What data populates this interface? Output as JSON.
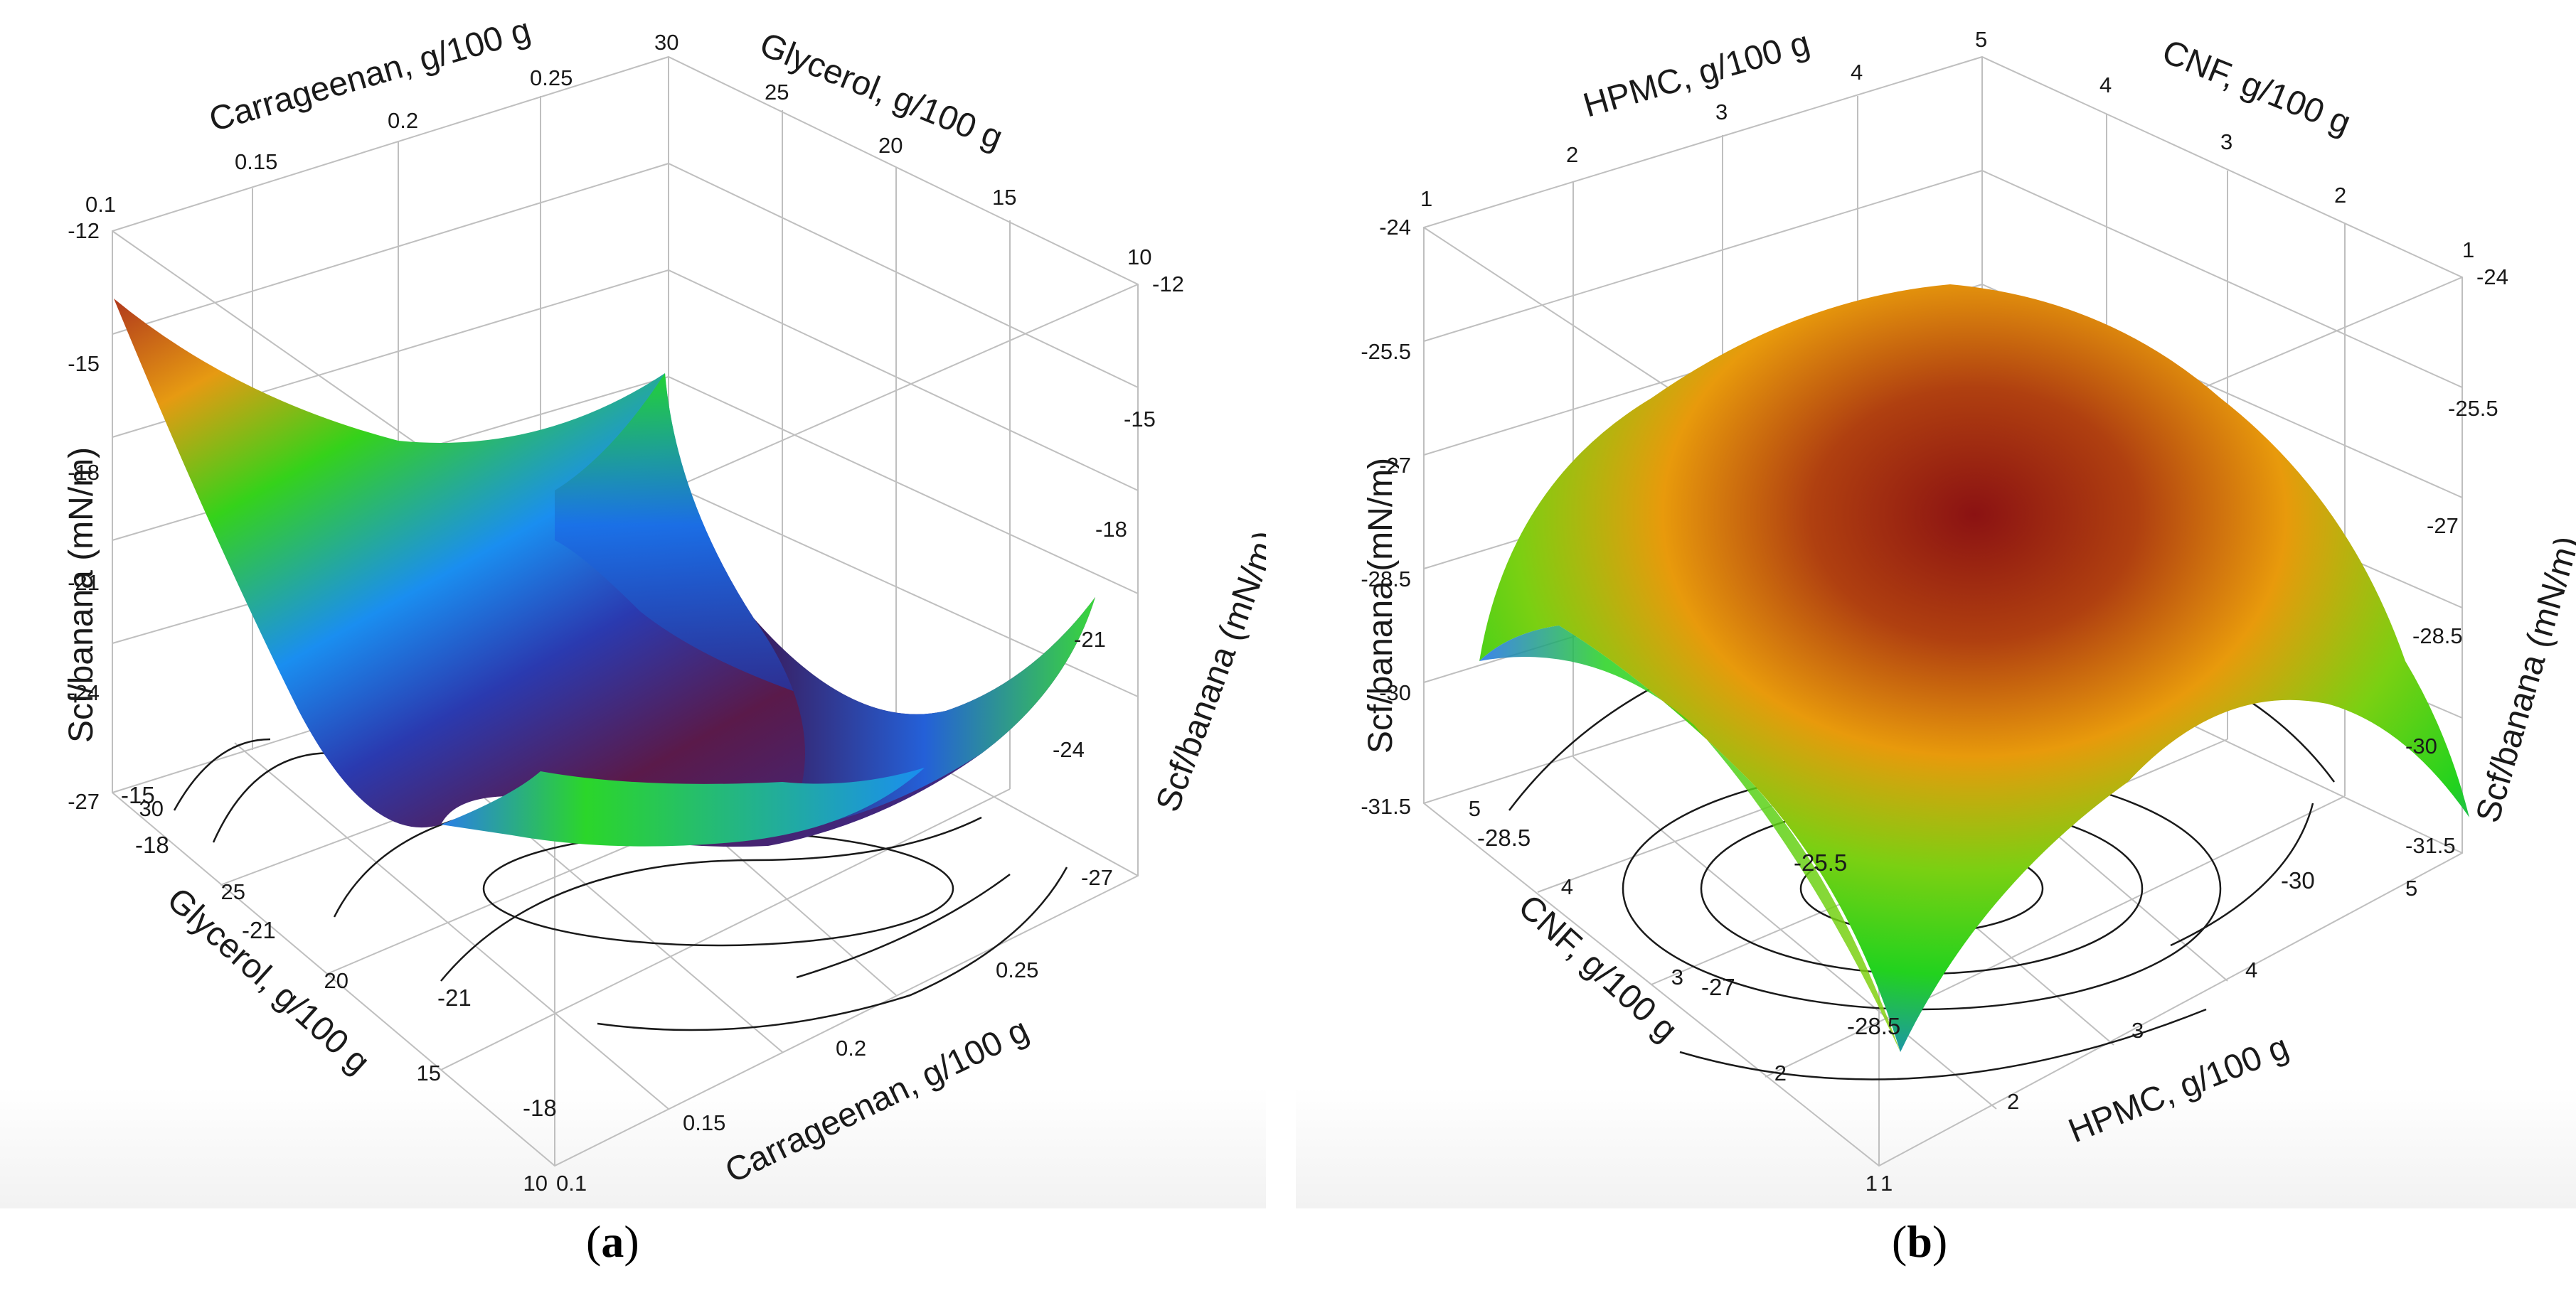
{
  "chart_data": [
    {
      "type": "surface3d",
      "panel_label": "a",
      "zlabel": "Scf/banana (mN/m)",
      "x_axis": {
        "label": "Carrageenan, g/100 g",
        "range": [
          0.1,
          0.3
        ],
        "ticks": [
          "0.1",
          "0.15",
          "0.2",
          "0.25"
        ]
      },
      "y_axis": {
        "label": "Glycerol, g/100 g",
        "range": [
          10,
          30
        ],
        "ticks": [
          "10",
          "15",
          "20",
          "25",
          "30"
        ]
      },
      "z_axis": {
        "range": [
          -27,
          -12
        ],
        "ticks": [
          "-12",
          "-15",
          "-18",
          "-21",
          "-24",
          "-27"
        ]
      },
      "contour_labels": [
        "-15",
        "-18",
        "-21",
        "-21",
        "-18"
      ],
      "back_x_ticks": [
        "0.1",
        "0.15",
        "0.2",
        "0.25",
        "30"
      ],
      "back_y_ticks": [
        "25",
        "20",
        "15",
        "10"
      ],
      "left_z_ticks": [
        "-12",
        "-15",
        "-18",
        "-21",
        "-24",
        "-27"
      ],
      "right_z_ticks": [
        "-12",
        "-15",
        "-18",
        "-21",
        "-24",
        "-27"
      ],
      "front_y_ticks": [
        "30",
        "25",
        "20",
        "15",
        "10"
      ],
      "front_x_ticks": [
        "0.1",
        "0.15",
        "0.2",
        "0.25"
      ],
      "surface": {
        "z_min": -26.5,
        "z_max": -12.5,
        "shape": "saddle-valley"
      }
    },
    {
      "type": "surface3d",
      "panel_label": "b",
      "zlabel": "Scf/banana (mN/m)",
      "x_axis": {
        "label": "HPMC, g/100 g",
        "range": [
          1,
          5
        ],
        "ticks": [
          "1",
          "2",
          "3",
          "4",
          "5"
        ]
      },
      "y_axis": {
        "label": "CNF, g/100 g",
        "range": [
          1,
          5
        ],
        "ticks": [
          "1",
          "2",
          "3",
          "4",
          "5"
        ]
      },
      "z_axis": {
        "range": [
          -31.5,
          -24
        ],
        "ticks": [
          "-24",
          "-25.5",
          "-27",
          "-28.5",
          "-30",
          "-31.5"
        ]
      },
      "contour_labels": [
        "-28.5",
        "-25.5",
        "-27",
        "-28.5",
        "-30"
      ],
      "back_x_ticks": [
        "1",
        "2",
        "3",
        "4",
        "5"
      ],
      "back_y_ticks": [
        "4",
        "3",
        "2",
        "1"
      ],
      "left_z_ticks": [
        "-24",
        "-25.5",
        "-27",
        "-28.5",
        "-30",
        "-31.5"
      ],
      "right_z_ticks": [
        "-24",
        "-25.5",
        "-27",
        "-28.5",
        "-30",
        "-31.5"
      ],
      "front_y_ticks": [
        "5",
        "4",
        "3",
        "2",
        "1"
      ],
      "front_x_ticks": [
        "1",
        "2",
        "3",
        "4",
        "5"
      ],
      "surface": {
        "z_min": -31.5,
        "z_max": -25.5,
        "shape": "dome"
      }
    }
  ],
  "captions": {
    "a": "a",
    "b": "b"
  },
  "colors": {
    "red": "#8b1a1a",
    "orange": "#e8960c",
    "green": "#25d11c",
    "blue": "#1a6cf5",
    "purple": "#5a1a4a"
  }
}
